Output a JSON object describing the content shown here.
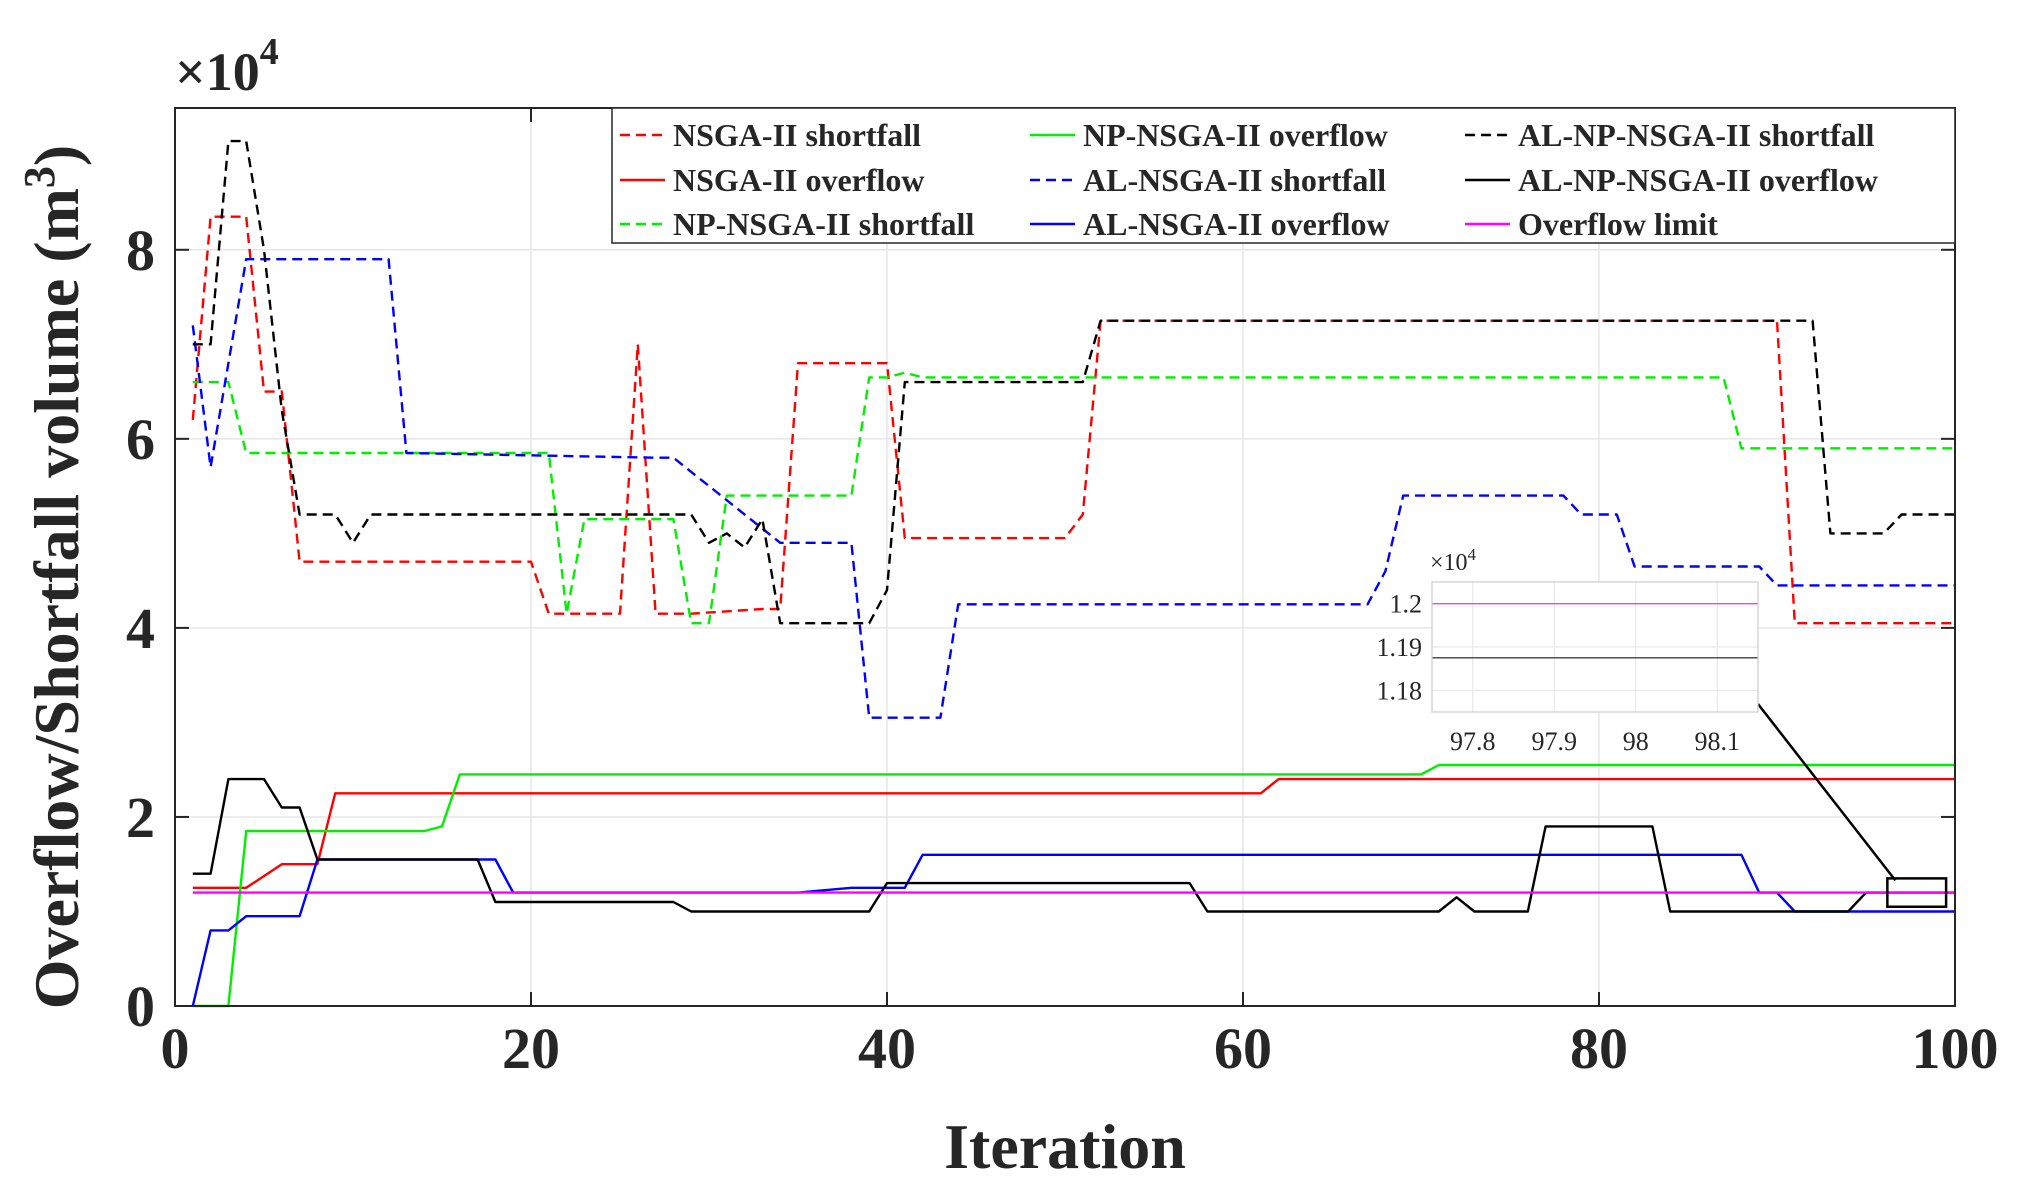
{
  "chart_data": {
    "type": "line",
    "title": "",
    "xlabel": "Iteration",
    "ylabel": "Overflow/Shortfall volume (m",
    "ylabel_sup": "3",
    "ylabel_close": ")",
    "exponent": {
      "base": "×10",
      "power": "4"
    },
    "xlim": [
      0,
      100
    ],
    "ylim": [
      0,
      9.5
    ],
    "xticks": [
      0,
      20,
      40,
      60,
      80,
      100
    ],
    "yticks": [
      0,
      2,
      4,
      6,
      8
    ],
    "xtick_labels": [
      "0",
      "20",
      "40",
      "60",
      "80",
      "100"
    ],
    "ytick_labels": [
      "0",
      "2",
      "4",
      "6",
      "8"
    ],
    "grid": true,
    "legend_position": "top-right",
    "series": [
      {
        "name": "NSGA-II shortfall",
        "color": "#ff0000",
        "dash": "dashed",
        "x": [
          1,
          2,
          3,
          4,
          5,
          6,
          7,
          8,
          9,
          20,
          21,
          22,
          25,
          26,
          27,
          28,
          29,
          33,
          34,
          35,
          40,
          41,
          50,
          51,
          52,
          90,
          91,
          100
        ],
        "y": [
          6.2,
          8.35,
          8.35,
          8.35,
          6.5,
          6.5,
          4.7,
          4.7,
          4.7,
          4.7,
          4.15,
          4.15,
          4.15,
          7.0,
          4.15,
          4.15,
          4.15,
          4.2,
          4.2,
          6.8,
          6.8,
          4.95,
          4.95,
          5.2,
          7.25,
          7.25,
          4.05,
          4.05
        ]
      },
      {
        "name": "NSGA-II overflow",
        "color": "#ff0000",
        "dash": "solid",
        "x": [
          1,
          4,
          6,
          7,
          8,
          9,
          10,
          61,
          62,
          100
        ],
        "y": [
          1.25,
          1.25,
          1.5,
          1.5,
          1.5,
          2.25,
          2.25,
          2.25,
          2.4,
          2.4
        ]
      },
      {
        "name": "NP-NSGA-II shortfall",
        "color": "#00ee00",
        "dash": "dashed",
        "x": [
          1,
          2,
          3,
          4,
          5,
          20,
          21,
          22,
          23,
          24,
          28,
          29,
          30,
          31,
          38,
          39,
          40,
          41,
          42,
          87,
          88,
          100
        ],
        "y": [
          6.6,
          6.6,
          6.6,
          5.85,
          5.85,
          5.85,
          5.85,
          4.15,
          5.15,
          5.15,
          5.15,
          4.05,
          4.05,
          5.4,
          5.4,
          6.65,
          6.65,
          6.7,
          6.65,
          6.65,
          5.9,
          5.9
        ]
      },
      {
        "name": "NP-NSGA-II overflow",
        "color": "#00ee00",
        "dash": "solid",
        "x": [
          1,
          2,
          3,
          4,
          14,
          15,
          16,
          70,
          71,
          100
        ],
        "y": [
          0,
          0,
          0,
          1.85,
          1.85,
          1.9,
          2.45,
          2.45,
          2.55,
          2.55
        ]
      },
      {
        "name": "AL-NSGA-II shortfall",
        "color": "#0000ff",
        "dash": "dashed",
        "x": [
          1,
          2,
          4,
          5,
          11,
          12,
          13,
          27,
          28,
          34,
          35,
          38,
          39,
          42,
          43,
          44,
          67,
          68,
          69,
          77,
          78,
          79,
          80,
          81,
          82,
          89,
          90,
          100
        ],
        "y": [
          7.2,
          5.7,
          7.9,
          7.9,
          7.9,
          7.9,
          5.85,
          5.8,
          5.8,
          4.9,
          4.9,
          4.9,
          3.05,
          3.05,
          3.05,
          4.25,
          4.25,
          4.6,
          5.4,
          5.4,
          5.4,
          5.2,
          5.2,
          5.2,
          4.65,
          4.65,
          4.45,
          4.45
        ]
      },
      {
        "name": "AL-NSGA-II overflow",
        "color": "#0000ff",
        "dash": "solid",
        "x": [
          1,
          2,
          3,
          4,
          7,
          8,
          17,
          18,
          19,
          26,
          27,
          35,
          38,
          41,
          42,
          84,
          85,
          88,
          89,
          90,
          91,
          100
        ],
        "y": [
          0,
          0.8,
          0.8,
          0.95,
          0.95,
          1.55,
          1.55,
          1.55,
          1.2,
          1.2,
          1.2,
          1.2,
          1.25,
          1.25,
          1.6,
          1.6,
          1.6,
          1.6,
          1.2,
          1.2,
          1.0,
          1.0
        ]
      },
      {
        "name": "AL-NP-NSGA-II shortfall",
        "color": "#000000",
        "dash": "dashed",
        "x": [
          1,
          2,
          3,
          4,
          5,
          6,
          7,
          8,
          9,
          10,
          11,
          28,
          29,
          30,
          31,
          32,
          33,
          34,
          38,
          39,
          40,
          41,
          42,
          51,
          52,
          92,
          93,
          94,
          96,
          97,
          98,
          100
        ],
        "y": [
          7.0,
          7.0,
          9.15,
          9.15,
          8.0,
          6.3,
          5.2,
          5.2,
          5.2,
          4.9,
          5.2,
          5.2,
          5.2,
          4.9,
          5.0,
          4.85,
          5.15,
          4.05,
          4.05,
          4.05,
          4.4,
          6.6,
          6.6,
          6.6,
          7.25,
          7.25,
          5.0,
          5.0,
          5.0,
          5.2,
          5.2,
          5.2
        ]
      },
      {
        "name": "AL-NP-NSGA-II overflow",
        "color": "#000000",
        "dash": "solid",
        "x": [
          1,
          2,
          3,
          4,
          5,
          6,
          7,
          8,
          16,
          17,
          18,
          28,
          29,
          38,
          39,
          40,
          41,
          57,
          58,
          71,
          72,
          73,
          75,
          76,
          77,
          83,
          84,
          94,
          95,
          96,
          100
        ],
        "y": [
          1.4,
          1.4,
          2.4,
          2.4,
          2.4,
          2.1,
          2.1,
          1.55,
          1.55,
          1.55,
          1.1,
          1.1,
          1.0,
          1.0,
          1.0,
          1.3,
          1.3,
          1.3,
          1.0,
          1.0,
          1.15,
          1.0,
          1.0,
          1.0,
          1.9,
          1.9,
          1.0,
          1.0,
          1.2,
          1.2,
          1.2
        ]
      },
      {
        "name": "Overflow limit",
        "color": "#ff00ff",
        "dash": "solid",
        "x": [
          1,
          100
        ],
        "y": [
          1.2,
          1.2
        ]
      }
    ],
    "inset": {
      "exponent": {
        "base": "×10",
        "power": "4"
      },
      "xlim": [
        97.75,
        98.15
      ],
      "ylim": [
        1.175,
        1.205
      ],
      "xticks": [
        97.8,
        97.9,
        98,
        98.1
      ],
      "xtick_labels": [
        "97.8",
        "97.9",
        "98",
        "98.1"
      ],
      "yticks": [
        1.18,
        1.19,
        1.2
      ],
      "ytick_labels": [
        "1.18",
        "1.19",
        "1.2"
      ],
      "lines": [
        {
          "name": "Overflow limit",
          "color": "#ff00ff",
          "y": 1.2
        },
        {
          "name": "AL-NP-NSGA-II overflow",
          "color": "#000000",
          "y": 1.1875
        }
      ],
      "zoom_box": {
        "x_range": [
          96.2,
          99.5
        ],
        "y_range": [
          1.05,
          1.35
        ]
      }
    }
  }
}
